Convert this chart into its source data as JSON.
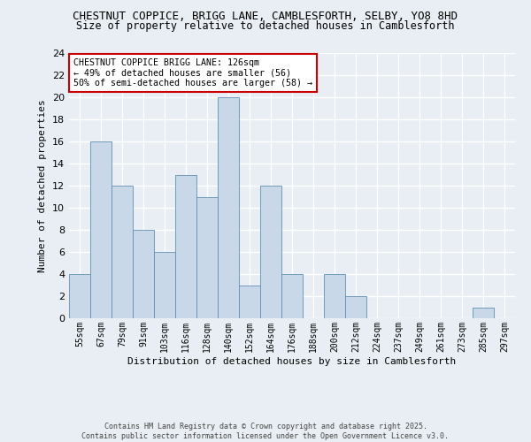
{
  "title": "CHESTNUT COPPICE, BRIGG LANE, CAMBLESFORTH, SELBY, YO8 8HD",
  "subtitle": "Size of property relative to detached houses in Camblesforth",
  "xlabel": "Distribution of detached houses by size in Camblesforth",
  "ylabel": "Number of detached properties",
  "categories": [
    "55sqm",
    "67sqm",
    "79sqm",
    "91sqm",
    "103sqm",
    "116sqm",
    "128sqm",
    "140sqm",
    "152sqm",
    "164sqm",
    "176sqm",
    "188sqm",
    "200sqm",
    "212sqm",
    "224sqm",
    "237sqm",
    "249sqm",
    "261sqm",
    "273sqm",
    "285sqm",
    "297sqm"
  ],
  "values": [
    4,
    16,
    12,
    8,
    6,
    13,
    11,
    20,
    3,
    12,
    4,
    0,
    4,
    2,
    0,
    0,
    0,
    0,
    0,
    1,
    0
  ],
  "bar_color": "#c8d8e8",
  "bar_edge_color": "#6090b0",
  "ylim": [
    0,
    24
  ],
  "yticks": [
    0,
    2,
    4,
    6,
    8,
    10,
    12,
    14,
    16,
    18,
    20,
    22,
    24
  ],
  "annotation_text": "CHESTNUT COPPICE BRIGG LANE: 126sqm\n← 49% of detached houses are smaller (56)\n50% of semi-detached houses are larger (58) →",
  "annotation_box_color": "#ffffff",
  "annotation_border_color": "#cc0000",
  "footer_line1": "Contains HM Land Registry data © Crown copyright and database right 2025.",
  "footer_line2": "Contains public sector information licensed under the Open Government Licence v3.0.",
  "bg_color": "#e8eef4",
  "plot_bg_color": "#e8eef4",
  "grid_color": "#ffffff"
}
